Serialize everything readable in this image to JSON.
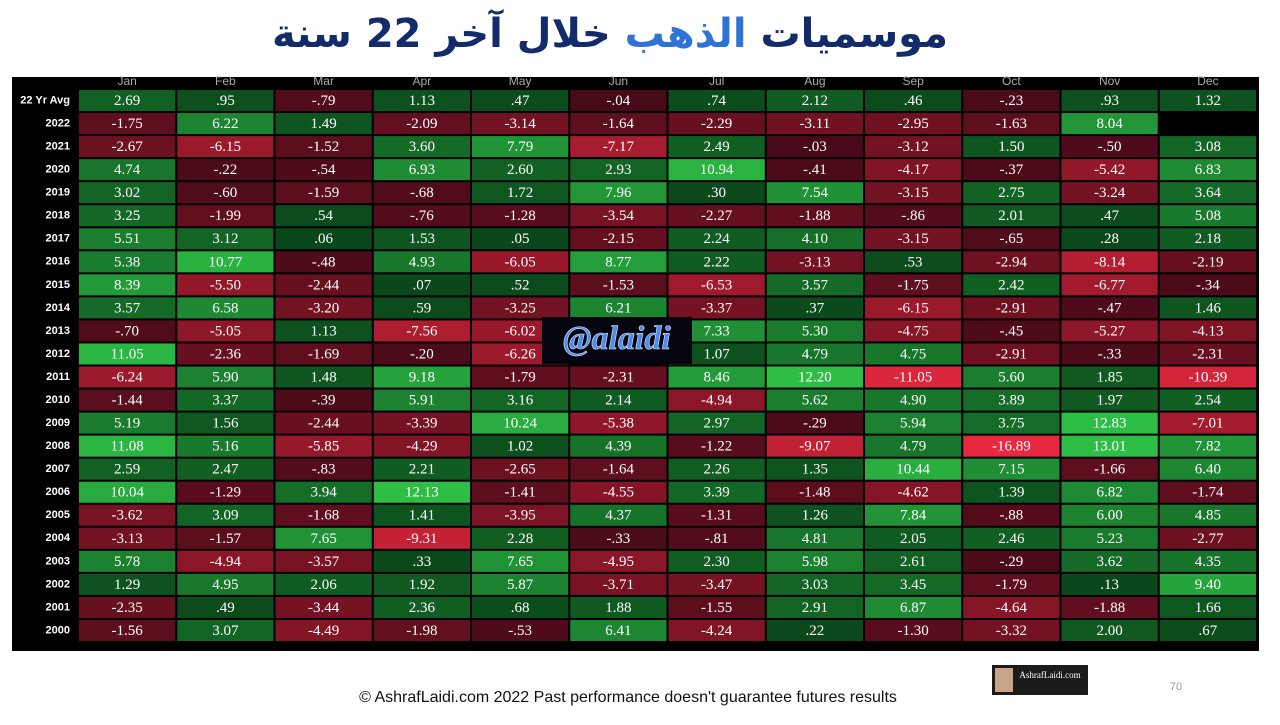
{
  "chart_data": {
    "type": "heatmap",
    "title_parts": [
      "موسميات",
      "الذهب",
      "خلال آخر 22 سنة"
    ],
    "categories": [
      "Jan",
      "Feb",
      "Mar",
      "Apr",
      "May",
      "Jun",
      "Jul",
      "Aug",
      "Sep",
      "Oct",
      "Nov",
      "Dec"
    ],
    "rows": [
      "22 Yr Avg",
      "2022",
      "2021",
      "2020",
      "2019",
      "2018",
      "2017",
      "2016",
      "2015",
      "2014",
      "2013",
      "2012",
      "2011",
      "2010",
      "2009",
      "2008",
      "2007",
      "2006",
      "2005",
      "2004",
      "2003",
      "2002",
      "2001",
      "2000"
    ],
    "values": [
      [
        2.69,
        0.95,
        -0.79,
        1.13,
        0.47,
        -0.04,
        0.74,
        2.12,
        0.46,
        -0.23,
        0.93,
        1.32
      ],
      [
        -1.75,
        6.22,
        1.49,
        -2.09,
        -3.14,
        -1.64,
        -2.29,
        -3.11,
        -2.95,
        -1.63,
        8.04,
        null
      ],
      [
        -2.67,
        -6.15,
        -1.52,
        3.6,
        7.79,
        -7.17,
        2.49,
        -0.03,
        -3.12,
        1.5,
        -0.5,
        3.08
      ],
      [
        4.74,
        -0.22,
        -0.54,
        6.93,
        2.6,
        2.93,
        10.94,
        -0.41,
        -4.17,
        -0.37,
        -5.42,
        6.83
      ],
      [
        3.02,
        -0.6,
        -1.59,
        -0.68,
        1.72,
        7.96,
        0.3,
        7.54,
        -3.15,
        2.75,
        -3.24,
        3.64
      ],
      [
        3.25,
        -1.99,
        0.54,
        -0.76,
        -1.28,
        -3.54,
        -2.27,
        -1.88,
        -0.86,
        2.01,
        0.47,
        5.08
      ],
      [
        5.51,
        3.12,
        0.06,
        1.53,
        0.05,
        -2.15,
        2.24,
        4.1,
        -3.15,
        -0.65,
        0.28,
        2.18
      ],
      [
        5.38,
        10.77,
        -0.48,
        4.93,
        -6.05,
        8.77,
        2.22,
        -3.13,
        0.53,
        -2.94,
        -8.14,
        -2.19
      ],
      [
        8.39,
        -5.5,
        -2.44,
        0.07,
        0.52,
        -1.53,
        -6.53,
        3.57,
        -1.75,
        2.42,
        -6.77,
        -0.34
      ],
      [
        3.57,
        6.58,
        -3.2,
        0.59,
        -3.25,
        6.21,
        -3.37,
        0.37,
        -6.15,
        -2.91,
        -0.47,
        1.46
      ],
      [
        -0.7,
        -5.05,
        1.13,
        -7.56,
        -6.02,
        null,
        7.33,
        5.3,
        -4.75,
        -0.45,
        -5.27,
        -4.13
      ],
      [
        11.05,
        -2.36,
        -1.69,
        -0.2,
        -6.26,
        null,
        1.07,
        4.79,
        4.75,
        -2.91,
        -0.33,
        -2.31
      ],
      [
        -6.24,
        5.9,
        1.48,
        9.18,
        -1.79,
        -2.31,
        8.46,
        12.2,
        -11.05,
        5.6,
        1.85,
        -10.39
      ],
      [
        -1.44,
        3.37,
        -0.39,
        5.91,
        3.16,
        2.14,
        -4.94,
        5.62,
        4.9,
        3.89,
        1.97,
        2.54
      ],
      [
        5.19,
        1.56,
        -2.44,
        -3.39,
        10.24,
        -5.38,
        2.97,
        -0.29,
        5.94,
        3.75,
        12.83,
        -7.01
      ],
      [
        11.08,
        5.16,
        -5.85,
        -4.29,
        1.02,
        4.39,
        -1.22,
        -9.07,
        4.79,
        -16.89,
        13.01,
        7.82
      ],
      [
        2.59,
        2.47,
        -0.83,
        2.21,
        -2.65,
        -1.64,
        2.26,
        1.35,
        10.44,
        7.15,
        -1.66,
        6.4
      ],
      [
        10.04,
        -1.29,
        3.94,
        12.13,
        -1.41,
        -4.55,
        3.39,
        -1.48,
        -4.62,
        1.39,
        6.82,
        -1.74
      ],
      [
        -3.62,
        3.09,
        -1.68,
        1.41,
        -3.95,
        4.37,
        -1.31,
        1.26,
        7.84,
        -0.88,
        6.0,
        4.85
      ],
      [
        -3.13,
        -1.57,
        7.65,
        -9.31,
        2.28,
        -0.33,
        -0.81,
        4.81,
        2.05,
        2.46,
        5.23,
        -2.77
      ],
      [
        5.78,
        -4.94,
        -3.57,
        0.33,
        7.65,
        -4.95,
        2.3,
        5.98,
        2.61,
        -0.29,
        3.62,
        4.35
      ],
      [
        1.29,
        4.95,
        2.06,
        1.92,
        5.87,
        -3.71,
        -3.47,
        3.03,
        3.45,
        -1.79,
        0.13,
        9.4
      ],
      [
        -2.35,
        0.49,
        -3.44,
        2.36,
        0.68,
        1.88,
        -1.55,
        2.91,
        6.87,
        -4.64,
        -1.88,
        1.66
      ],
      [
        -1.56,
        3.07,
        -4.49,
        -1.98,
        -0.53,
        6.41,
        -4.24,
        0.22,
        -1.3,
        -3.32,
        2.0,
        0.67
      ]
    ],
    "value_labels": [
      [
        "2.69",
        ".95",
        "-.79",
        "1.13",
        ".47",
        "-.04",
        ".74",
        "2.12",
        ".46",
        "-.23",
        ".93",
        "1.32"
      ],
      [
        "-1.75",
        "6.22",
        "1.49",
        "-2.09",
        "-3.14",
        "-1.64",
        "-2.29",
        "-3.11",
        "-2.95",
        "-1.63",
        "8.04",
        null
      ],
      [
        "-2.67",
        "-6.15",
        "-1.52",
        "3.60",
        "7.79",
        "-7.17",
        "2.49",
        "-.03",
        "-3.12",
        "1.50",
        "-.50",
        "3.08"
      ],
      [
        "4.74",
        "-.22",
        "-.54",
        "6.93",
        "2.60",
        "2.93",
        "10.94",
        "-.41",
        "-4.17",
        "-.37",
        "-5.42",
        "6.83"
      ],
      [
        "3.02",
        "-.60",
        "-1.59",
        "-.68",
        "1.72",
        "7.96",
        ".30",
        "7.54",
        "-3.15",
        "2.75",
        "-3.24",
        "3.64"
      ],
      [
        "3.25",
        "-1.99",
        ".54",
        "-.76",
        "-1.28",
        "-3.54",
        "-2.27",
        "-1.88",
        "-.86",
        "2.01",
        ".47",
        "5.08"
      ],
      [
        "5.51",
        "3.12",
        ".06",
        "1.53",
        ".05",
        "-2.15",
        "2.24",
        "4.10",
        "-3.15",
        "-.65",
        ".28",
        "2.18"
      ],
      [
        "5.38",
        "10.77",
        "-.48",
        "4.93",
        "-6.05",
        "8.77",
        "2.22",
        "-3.13",
        ".53",
        "-2.94",
        "-8.14",
        "-2.19"
      ],
      [
        "8.39",
        "-5.50",
        "-2.44",
        ".07",
        ".52",
        "-1.53",
        "-6.53",
        "3.57",
        "-1.75",
        "2.42",
        "-6.77",
        "-.34"
      ],
      [
        "3.57",
        "6.58",
        "-3.20",
        ".59",
        "-3.25",
        "6.21",
        "-3.37",
        ".37",
        "-6.15",
        "-2.91",
        "-.47",
        "1.46"
      ],
      [
        "-.70",
        "-5.05",
        "1.13",
        "-7.56",
        "-6.02",
        null,
        "7.33",
        "5.30",
        "-4.75",
        "-.45",
        "-5.27",
        "-4.13"
      ],
      [
        "11.05",
        "-2.36",
        "-1.69",
        "-.20",
        "-6.26",
        null,
        "1.07",
        "4.79",
        "4.75",
        "-2.91",
        "-.33",
        "-2.31"
      ],
      [
        "-6.24",
        "5.90",
        "1.48",
        "9.18",
        "-1.79",
        "-2.31",
        "8.46",
        "12.20",
        "-11.05",
        "5.60",
        "1.85",
        "-10.39"
      ],
      [
        "-1.44",
        "3.37",
        "-.39",
        "5.91",
        "3.16",
        "2.14",
        "-4.94",
        "5.62",
        "4.90",
        "3.89",
        "1.97",
        "2.54"
      ],
      [
        "5.19",
        "1.56",
        "-2.44",
        "-3.39",
        "10.24",
        "-5.38",
        "2.97",
        "-.29",
        "5.94",
        "3.75",
        "12.83",
        "-7.01"
      ],
      [
        "11.08",
        "5.16",
        "-5.85",
        "-4.29",
        "1.02",
        "4.39",
        "-1.22",
        "-9.07",
        "4.79",
        "-16.89",
        "13.01",
        "7.82"
      ],
      [
        "2.59",
        "2.47",
        "-.83",
        "2.21",
        "-2.65",
        "-1.64",
        "2.26",
        "1.35",
        "10.44",
        "7.15",
        "-1.66",
        "6.40"
      ],
      [
        "10.04",
        "-1.29",
        "3.94",
        "12.13",
        "-1.41",
        "-4.55",
        "3.39",
        "-1.48",
        "-4.62",
        "1.39",
        "6.82",
        "-1.74"
      ],
      [
        "-3.62",
        "3.09",
        "-1.68",
        "1.41",
        "-3.95",
        "4.37",
        "-1.31",
        "1.26",
        "7.84",
        "-.88",
        "6.00",
        "4.85"
      ],
      [
        "-3.13",
        "-1.57",
        "7.65",
        "-9.31",
        "2.28",
        "-.33",
        "-.81",
        "4.81",
        "2.05",
        "2.46",
        "5.23",
        "-2.77"
      ],
      [
        "5.78",
        "-4.94",
        "-3.57",
        ".33",
        "7.65",
        "-4.95",
        "2.30",
        "5.98",
        "2.61",
        "-.29",
        "3.62",
        "4.35"
      ],
      [
        "1.29",
        "4.95",
        "2.06",
        "1.92",
        "5.87",
        "-3.71",
        "-3.47",
        "3.03",
        "3.45",
        "-1.79",
        ".13",
        "9.40"
      ],
      [
        "-2.35",
        ".49",
        "-3.44",
        "2.36",
        ".68",
        "1.88",
        "-1.55",
        "2.91",
        "6.87",
        "-4.64",
        "-1.88",
        "1.66"
      ],
      [
        "-1.56",
        "3.07",
        "-4.49",
        "-1.98",
        "-.53",
        "6.41",
        "-4.24",
        ".22",
        "-1.30",
        "-3.32",
        "2.00",
        ".67"
      ]
    ],
    "watermark": "@alaidi",
    "footer": "© AshrafLaidi.com 2022 Past performance doesn't guarantee futures results",
    "logo": "AshrafLaidi.com",
    "page_number": "70"
  }
}
